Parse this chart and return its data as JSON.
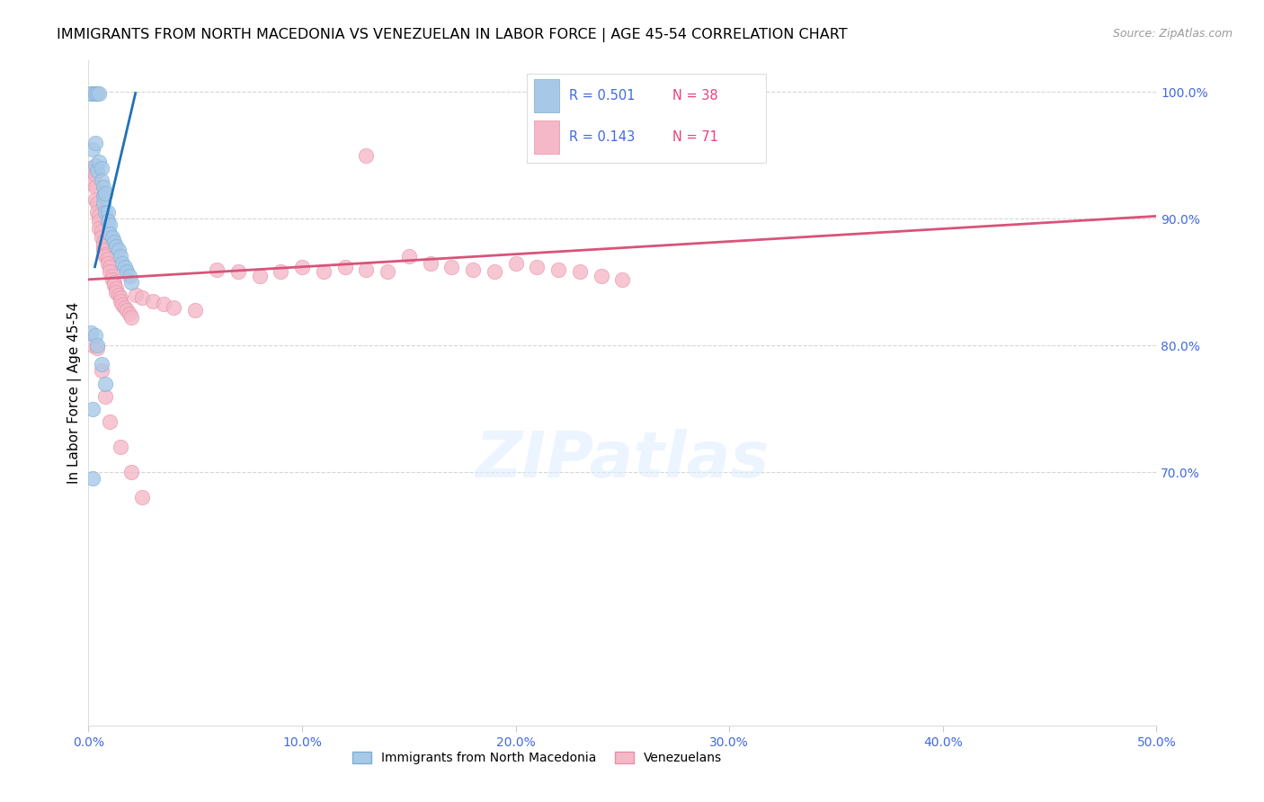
{
  "title": "IMMIGRANTS FROM NORTH MACEDONIA VS VENEZUELAN IN LABOR FORCE | AGE 45-54 CORRELATION CHART",
  "source": "Source: ZipAtlas.com",
  "ylabel": "In Labor Force | Age 45-54",
  "xlim": [
    0.0,
    0.5
  ],
  "ylim": [
    0.5,
    1.025
  ],
  "xtick_vals": [
    0.0,
    0.1,
    0.2,
    0.3,
    0.4,
    0.5
  ],
  "xtick_labels": [
    "0.0%",
    "10.0%",
    "20.0%",
    "30.0%",
    "40.0%",
    "50.0%"
  ],
  "ytick_right_vals": [
    0.7,
    0.8,
    0.9,
    1.0
  ],
  "ytick_right_labels": [
    "70.0%",
    "80.0%",
    "90.0%",
    "100.0%"
  ],
  "blue_color_fill": "#a8c8e8",
  "blue_color_edge": "#7ab0d4",
  "pink_color_fill": "#f4b8c8",
  "pink_color_edge": "#e890a8",
  "blue_line_color": "#2171b5",
  "pink_line_color": "#d9537a",
  "tick_label_color": "#4169E1",
  "legend_R_color": "#4169E1",
  "legend_N_color": "#e84080",
  "watermark_text": "ZIPatlas",
  "R_blue": "0.501",
  "N_blue": "38",
  "R_pink": "0.143",
  "N_pink": "71",
  "legend_label_blue": "Immigrants from North Macedonia",
  "legend_label_pink": "Venezuelans",
  "blue_trend_x": [
    0.003,
    0.022
  ],
  "blue_trend_y": [
    0.862,
    0.999
  ],
  "pink_trend_x": [
    0.0,
    0.5
  ],
  "pink_trend_y": [
    0.852,
    0.902
  ],
  "blue_x": [
    0.001,
    0.002,
    0.002,
    0.002,
    0.003,
    0.003,
    0.003,
    0.004,
    0.004,
    0.005,
    0.005,
    0.006,
    0.006,
    0.007,
    0.007,
    0.007,
    0.008,
    0.008,
    0.009,
    0.009,
    0.01,
    0.01,
    0.011,
    0.012,
    0.013,
    0.014,
    0.015,
    0.016,
    0.017,
    0.018,
    0.019,
    0.02,
    0.001,
    0.002,
    0.003,
    0.004,
    0.006,
    0.008
  ],
  "blue_y": [
    0.999,
    0.999,
    0.955,
    0.75,
    0.999,
    0.96,
    0.942,
    0.999,
    0.938,
    0.999,
    0.945,
    0.94,
    0.93,
    0.925,
    0.918,
    0.912,
    0.92,
    0.905,
    0.905,
    0.898,
    0.895,
    0.888,
    0.885,
    0.882,
    0.878,
    0.875,
    0.87,
    0.865,
    0.862,
    0.858,
    0.855,
    0.85,
    0.81,
    0.695,
    0.808,
    0.8,
    0.785,
    0.77
  ],
  "pink_x": [
    0.001,
    0.002,
    0.002,
    0.003,
    0.003,
    0.003,
    0.004,
    0.004,
    0.005,
    0.005,
    0.005,
    0.006,
    0.006,
    0.007,
    0.007,
    0.007,
    0.008,
    0.008,
    0.009,
    0.009,
    0.01,
    0.01,
    0.011,
    0.011,
    0.012,
    0.012,
    0.013,
    0.013,
    0.014,
    0.015,
    0.015,
    0.016,
    0.017,
    0.018,
    0.019,
    0.02,
    0.022,
    0.025,
    0.03,
    0.035,
    0.04,
    0.05,
    0.06,
    0.07,
    0.08,
    0.09,
    0.1,
    0.11,
    0.12,
    0.13,
    0.14,
    0.15,
    0.16,
    0.17,
    0.18,
    0.19,
    0.2,
    0.21,
    0.22,
    0.23,
    0.24,
    0.25,
    0.002,
    0.004,
    0.006,
    0.008,
    0.01,
    0.015,
    0.02,
    0.025,
    0.13
  ],
  "pink_y": [
    0.94,
    0.938,
    0.928,
    0.935,
    0.925,
    0.915,
    0.912,
    0.905,
    0.902,
    0.898,
    0.892,
    0.89,
    0.885,
    0.882,
    0.878,
    0.875,
    0.872,
    0.87,
    0.868,
    0.865,
    0.862,
    0.858,
    0.855,
    0.852,
    0.85,
    0.848,
    0.845,
    0.842,
    0.84,
    0.838,
    0.835,
    0.832,
    0.83,
    0.828,
    0.825,
    0.822,
    0.84,
    0.838,
    0.835,
    0.833,
    0.83,
    0.828,
    0.86,
    0.858,
    0.855,
    0.858,
    0.862,
    0.858,
    0.862,
    0.86,
    0.858,
    0.87,
    0.865,
    0.862,
    0.86,
    0.858,
    0.865,
    0.862,
    0.86,
    0.858,
    0.855,
    0.852,
    0.8,
    0.798,
    0.78,
    0.76,
    0.74,
    0.72,
    0.7,
    0.68,
    0.95
  ]
}
